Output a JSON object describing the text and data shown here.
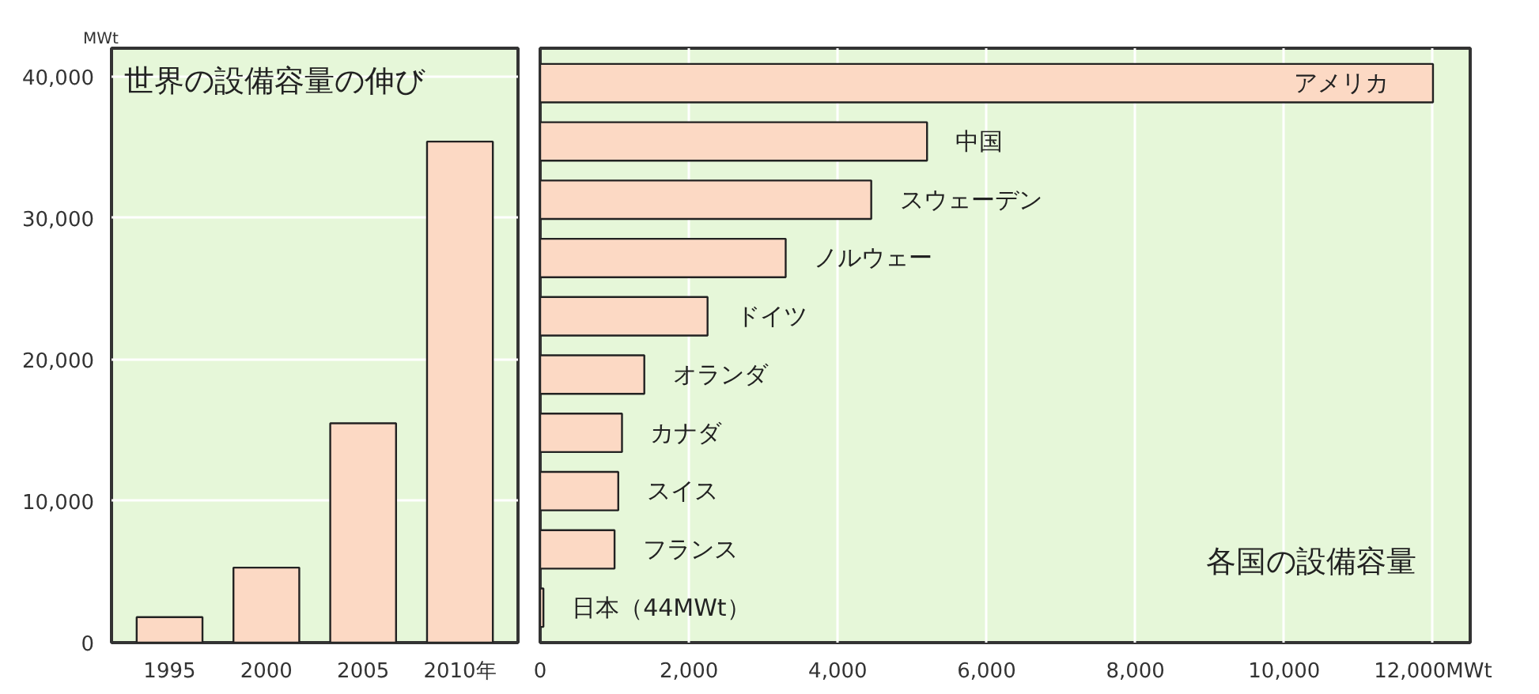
{
  "chart_data": [
    {
      "type": "bar",
      "title": "世界の設備容量の伸び",
      "ylabel": "MWt",
      "categories": [
        "1995",
        "2000",
        "2005",
        "2010年"
      ],
      "values": [
        1800,
        5300,
        15500,
        35400
      ],
      "color": "#fcd9c4",
      "ylim": [
        0,
        42000
      ],
      "yticks": [
        0,
        {
          "value": 10000,
          "label": "10,000"
        },
        {
          "value": 20000,
          "label": "20,000"
        },
        {
          "value": 30000,
          "label": "30,000"
        },
        {
          "value": 40000,
          "label": "40,000"
        }
      ],
      "grid": "y"
    },
    {
      "type": "bar",
      "orientation": "horizontal",
      "title": "各国の設備容量",
      "categories": [
        "アメリカ",
        "中国",
        "スウェーデン",
        "ノルウェー",
        "ドイツ",
        "オランダ",
        "カナダ",
        "スイス",
        "フランス",
        "日本（44MWt）"
      ],
      "values": [
        12000,
        5200,
        4450,
        3300,
        2250,
        1400,
        1100,
        1050,
        1000,
        44
      ],
      "color": "#fcd9c4",
      "xlim": [
        0,
        12500
      ],
      "xticks": [
        0,
        {
          "value": 2000,
          "label": "2,000"
        },
        {
          "value": 4000,
          "label": "4,000"
        },
        {
          "value": 6000,
          "label": "6,000"
        },
        {
          "value": 8000,
          "label": "8,000"
        },
        {
          "value": 10000,
          "label": "10,000"
        },
        {
          "value": 12000,
          "label": "12,000MWt"
        }
      ],
      "grid": "x"
    }
  ]
}
